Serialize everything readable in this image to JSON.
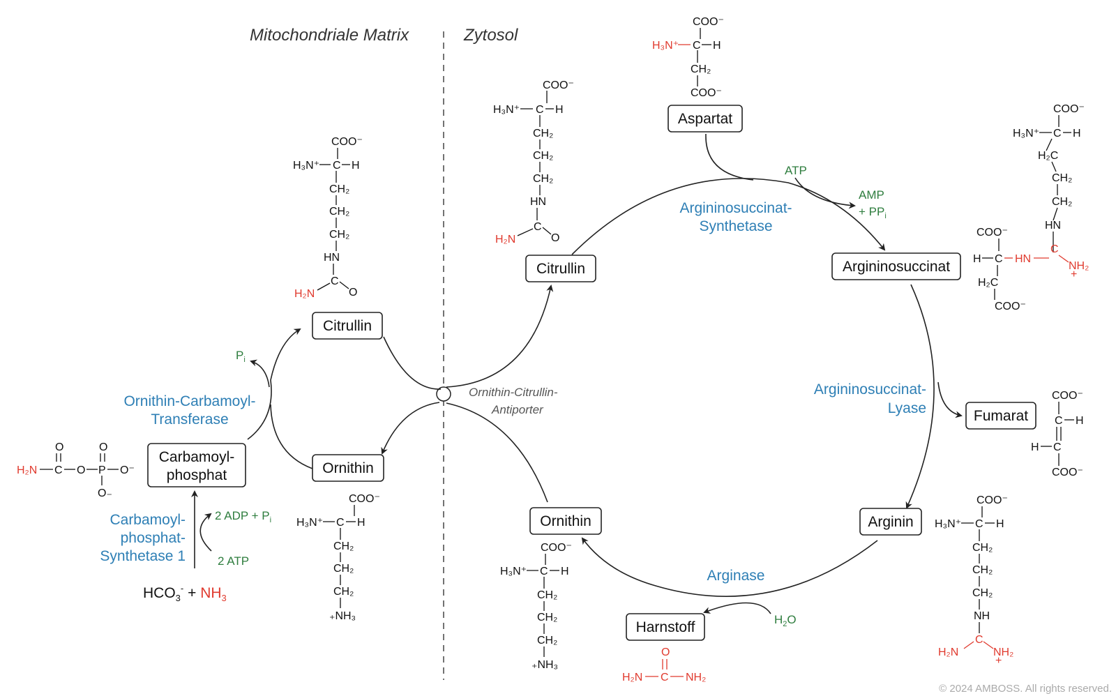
{
  "regions": {
    "left": "Mitochondriale Matrix",
    "right": "Zytosol"
  },
  "antiporter": {
    "line1": "Ornithin-Citrullin-",
    "line2": "Antiporter"
  },
  "boxes": {
    "aspartat": "Aspartat",
    "citrullin_cyto": "Citrullin",
    "argininosuccinat": "Argininosuccinat",
    "fumarat": "Fumarat",
    "arginin": "Arginin",
    "harnstoff": "Harnstoff",
    "ornithin_cyto": "Ornithin",
    "citrullin_mito": "Citrullin",
    "ornithin_mito": "Ornithin",
    "carbamoyl_line1": "Carbamoyl-",
    "carbamoyl_line2": "phosphat"
  },
  "enzymes": {
    "ass_line1": "Argininosuccinat-",
    "ass_line2": "Synthetase",
    "asl_line1": "Argininosuccinat-",
    "asl_line2": "Lyase",
    "arginase": "Arginase",
    "otc_line1": "Ornithin-Carbamoyl-",
    "otc_line2": "Transferase",
    "cps_line1": "Carbamoyl-",
    "cps_line2": "phosphat-",
    "cps_line3": "Synthetase 1"
  },
  "cofactors": {
    "atp": "ATP",
    "amp": "AMP",
    "ppi": "+ PP",
    "ppi_sub": "i",
    "h2o": "H",
    "h2o_sub": "2",
    "h2o_end": "O",
    "pi": "P",
    "pi_sub": "i",
    "adp": "2 ADP + P",
    "adp_sub": "i",
    "atp2": "2 ATP"
  },
  "substrate": {
    "hco3": "HCO",
    "hco3_sub": "3",
    "hco3_sup": "-",
    "plus": " + ",
    "nh3": "NH",
    "nh3_sub": "3"
  },
  "copyright": "© 2024 AMBOSS. All rights reserved.",
  "colors": {
    "enzyme": "#2e7fb5",
    "cofactor": "#2e7d3e",
    "highlight": "#e03a2e",
    "text": "#111111"
  }
}
